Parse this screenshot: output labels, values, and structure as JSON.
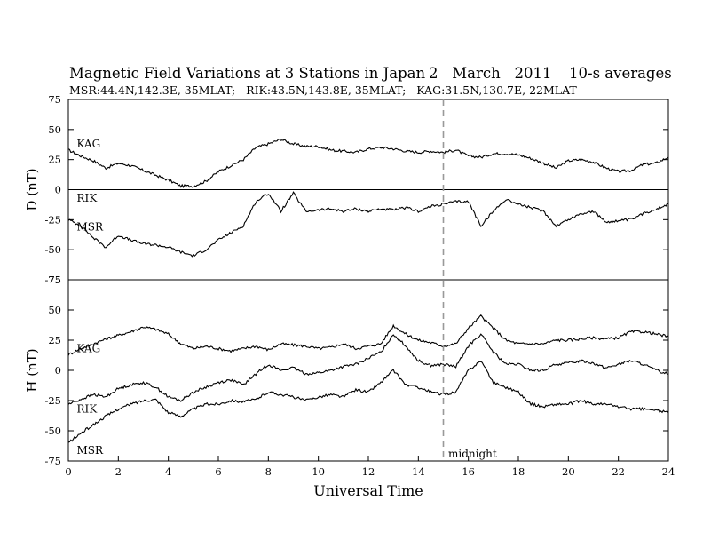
{
  "title": "Magnetic Field Variations at 3 Stations in Japan",
  "date": "2   March   2011",
  "averaging": "10-s averages",
  "subtitle": "MSR:44.4N,142.3E, 35MLAT;   RIK:43.5N,143.8E, 35MLAT;   KAG:31.5N,130.7E, 22MLAT",
  "chart_data": [
    {
      "type": "line",
      "panel": "D",
      "ylabel": "D (nT)",
      "ylim": [
        -75,
        75
      ],
      "y_ticks": [
        75,
        50,
        25,
        0,
        -25,
        -50,
        -75
      ],
      "xlim": [
        0,
        24
      ],
      "grid": false,
      "zero_line": true,
      "station_labels": [
        {
          "name": "KAG",
          "x": 0.3,
          "y": 38
        },
        {
          "name": "RIK",
          "x": 0.3,
          "y": -7
        },
        {
          "name": "MSR",
          "x": 0.3,
          "y": -31
        }
      ],
      "series": [
        {
          "name": "KAG",
          "x": [
            0,
            0.5,
            1,
            1.5,
            2,
            2.5,
            3,
            3.5,
            4,
            4.5,
            5,
            5.5,
            6,
            6.5,
            7,
            7.5,
            8,
            8.5,
            9,
            9.5,
            10,
            10.5,
            11,
            11.5,
            12,
            12.5,
            13,
            13.5,
            14,
            14.5,
            15,
            15.5,
            16,
            16.5,
            17,
            17.5,
            18,
            18.5,
            19,
            19.5,
            20,
            20.5,
            21,
            21.5,
            22,
            22.5,
            23,
            23.5,
            24
          ],
          "values": [
            33,
            28,
            24,
            18,
            22,
            20,
            16,
            12,
            8,
            3,
            3,
            7,
            15,
            20,
            25,
            35,
            38,
            42,
            38,
            36,
            36,
            33,
            32,
            31,
            34,
            35,
            34,
            32,
            31,
            32,
            31,
            33,
            28,
            27,
            30,
            30,
            29,
            26,
            22,
            18,
            24,
            25,
            23,
            18,
            15,
            16,
            21,
            22,
            27
          ]
        },
        {
          "name": "RIK / MSR",
          "x": [
            0,
            0.5,
            1,
            1.5,
            2,
            2.5,
            3,
            3.5,
            4,
            4.5,
            5,
            5.5,
            6,
            6.5,
            7,
            7.5,
            8,
            8.5,
            9,
            9.5,
            10,
            10.5,
            11,
            11.5,
            12,
            12.5,
            13,
            13.5,
            14,
            14.5,
            15,
            15.5,
            16,
            16.5,
            17,
            17.5,
            18,
            18.5,
            19,
            19.5,
            20,
            20.5,
            21,
            21.5,
            22,
            22.5,
            23,
            23.5,
            24
          ],
          "values": [
            -25,
            -30,
            -40,
            -48,
            -38,
            -42,
            -45,
            -46,
            -48,
            -52,
            -55,
            -50,
            -42,
            -36,
            -30,
            -10,
            -3,
            -18,
            -3,
            -18,
            -17,
            -16,
            -18,
            -16,
            -18,
            -16,
            -17,
            -15,
            -18,
            -14,
            -12,
            -10,
            -10,
            -30,
            -18,
            -8,
            -12,
            -15,
            -18,
            -30,
            -25,
            -20,
            -18,
            -27,
            -26,
            -25,
            -20,
            -16,
            -12
          ]
        }
      ]
    },
    {
      "type": "line",
      "panel": "H",
      "ylabel": "H (nT)",
      "ylim": [
        -75,
        75
      ],
      "y_ticks": [
        75,
        50,
        25,
        0,
        -25,
        -50,
        -75
      ],
      "xlim": [
        0,
        24
      ],
      "grid": false,
      "zero_line": false,
      "station_labels": [
        {
          "name": "KAG",
          "x": 0.3,
          "y": 18
        },
        {
          "name": "RIK",
          "x": 0.3,
          "y": -32
        },
        {
          "name": "MSR",
          "x": 0.3,
          "y": -66
        }
      ],
      "series": [
        {
          "name": "KAG",
          "x": [
            0,
            0.5,
            1,
            1.5,
            2,
            2.5,
            3,
            3.5,
            4,
            4.5,
            5,
            5.5,
            6,
            6.5,
            7,
            7.5,
            8,
            8.5,
            9,
            9.5,
            10,
            10.5,
            11,
            11.5,
            12,
            12.5,
            13,
            13.5,
            14,
            14.5,
            15,
            15.5,
            16,
            16.5,
            17,
            17.5,
            18,
            18.5,
            19,
            19.5,
            20,
            20.5,
            21,
            21.5,
            22,
            22.5,
            23,
            23.5,
            24
          ],
          "values": [
            13,
            18,
            22,
            26,
            29,
            32,
            36,
            34,
            30,
            22,
            18,
            20,
            18,
            16,
            18,
            20,
            17,
            22,
            21,
            20,
            18,
            19,
            22,
            18,
            20,
            22,
            37,
            30,
            25,
            23,
            20,
            22,
            35,
            45,
            35,
            25,
            22,
            22,
            22,
            25,
            25,
            26,
            27,
            26,
            27,
            32,
            32,
            30,
            28
          ]
        },
        {
          "name": "RIK",
          "x": [
            0,
            0.5,
            1,
            1.5,
            2,
            2.5,
            3,
            3.5,
            4,
            4.5,
            5,
            5.5,
            6,
            6.5,
            7,
            7.5,
            8,
            8.5,
            9,
            9.5,
            10,
            10.5,
            11,
            11.5,
            12,
            12.5,
            13,
            13.5,
            14,
            14.5,
            15,
            15.5,
            16,
            16.5,
            17,
            17.5,
            18,
            18.5,
            19,
            19.5,
            20,
            20.5,
            21,
            21.5,
            22,
            22.5,
            23,
            23.5,
            24
          ],
          "values": [
            -28,
            -24,
            -20,
            -22,
            -15,
            -12,
            -10,
            -14,
            -22,
            -25,
            -18,
            -14,
            -10,
            -8,
            -12,
            -3,
            5,
            0,
            2,
            -3,
            -2,
            0,
            3,
            5,
            10,
            15,
            30,
            20,
            8,
            4,
            5,
            3,
            20,
            30,
            15,
            5,
            5,
            0,
            0,
            5,
            6,
            8,
            6,
            2,
            5,
            8,
            5,
            0,
            -3
          ]
        },
        {
          "name": "MSR",
          "x": [
            0,
            0.5,
            1,
            1.5,
            2,
            2.5,
            3,
            3.5,
            4,
            4.5,
            5,
            5.5,
            6,
            6.5,
            7,
            7.5,
            8,
            8.5,
            9,
            9.5,
            10,
            10.5,
            11,
            11.5,
            12,
            12.5,
            13,
            13.5,
            14,
            14.5,
            15,
            15.5,
            16,
            16.5,
            17,
            17.5,
            18,
            18.5,
            19,
            19.5,
            20,
            20.5,
            21,
            21.5,
            22,
            22.5,
            23,
            23.5,
            24
          ],
          "values": [
            -60,
            -52,
            -45,
            -38,
            -32,
            -28,
            -25,
            -24,
            -35,
            -38,
            -32,
            -28,
            -28,
            -25,
            -26,
            -24,
            -18,
            -20,
            -22,
            -25,
            -22,
            -20,
            -22,
            -16,
            -18,
            -10,
            0,
            -12,
            -14,
            -18,
            -20,
            -18,
            0,
            8,
            -10,
            -14,
            -18,
            -28,
            -30,
            -28,
            -28,
            -25,
            -28,
            -28,
            -30,
            -32,
            -32,
            -33,
            -35
          ]
        }
      ]
    }
  ],
  "x_axis": {
    "label": "Universal Time",
    "ticks": [
      0,
      2,
      4,
      6,
      8,
      10,
      12,
      14,
      16,
      18,
      20,
      22,
      24
    ]
  },
  "marker": {
    "x": 15,
    "label": "midnight"
  }
}
